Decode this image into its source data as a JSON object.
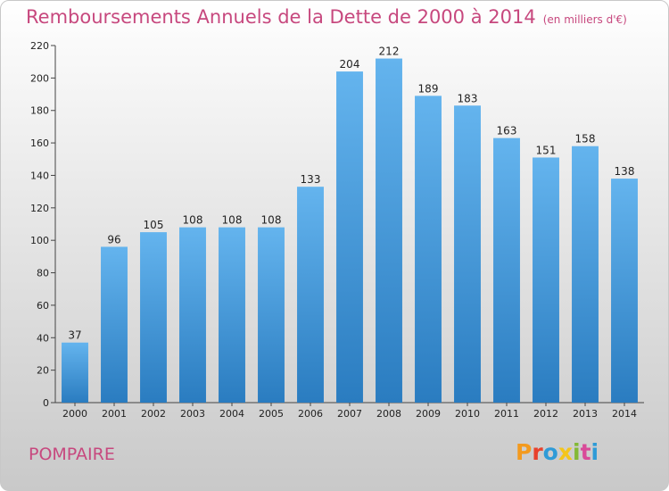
{
  "header": {
    "title": "Remboursements Annuels de la Dette de 2000 à 2014",
    "subtitle": "(en milliers d'€)"
  },
  "footer": {
    "commune": "POMPAIRE",
    "brand": "Proxiti",
    "brand_colors": [
      "#f39a1e",
      "#e8412c",
      "#2f9bd7",
      "#f4c51b",
      "#83b935",
      "#d94a99",
      "#2f9bd7"
    ]
  },
  "colors": {
    "bar_top": "#64b4ee",
    "bar_bottom": "#2a7cc0",
    "title": "#c7487e"
  },
  "chart_data": {
    "type": "bar",
    "title": "Remboursements Annuels de la Dette de 2000 à 2014",
    "subtitle": "(en milliers d'€)",
    "xlabel": "",
    "ylabel": "",
    "categories": [
      "2000",
      "2001",
      "2002",
      "2003",
      "2004",
      "2005",
      "2006",
      "2007",
      "2008",
      "2009",
      "2010",
      "2011",
      "2012",
      "2013",
      "2014"
    ],
    "values": [
      37,
      96,
      105,
      108,
      108,
      108,
      133,
      204,
      212,
      189,
      183,
      163,
      151,
      158,
      138
    ],
    "ylim": [
      0,
      220
    ],
    "yticks": [
      0,
      20,
      40,
      60,
      80,
      100,
      120,
      140,
      160,
      180,
      200,
      220
    ],
    "grid": false,
    "legend": "none"
  }
}
